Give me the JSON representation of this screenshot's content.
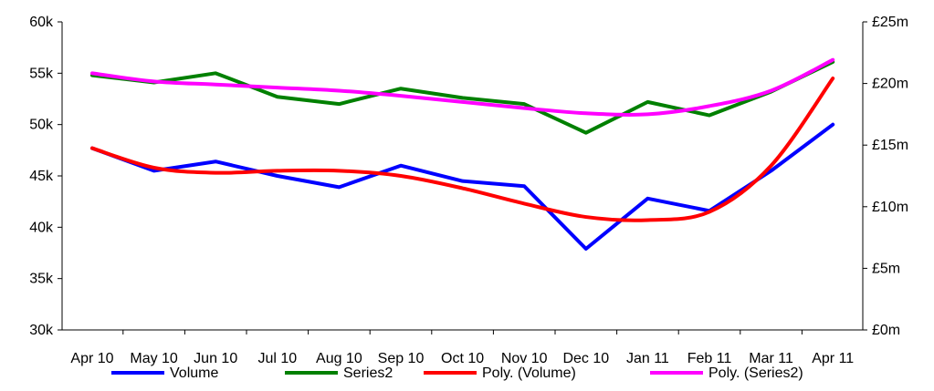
{
  "chart_data": {
    "type": "line",
    "title": "",
    "xlabel": "",
    "ylabel": "",
    "categories": [
      "Apr 10",
      "May 10",
      "Jun 10",
      "Jul 10",
      "Aug 10",
      "Sep 10",
      "Oct 10",
      "Nov 10",
      "Dec 10",
      "Jan 11",
      "Feb 11",
      "Mar 11",
      "Apr 11"
    ],
    "y_left": {
      "range": [
        30000,
        60000
      ],
      "ticks": [
        30000,
        35000,
        40000,
        45000,
        50000,
        55000,
        60000
      ],
      "tick_labels": [
        "30k",
        "35k",
        "40k",
        "45k",
        "50k",
        "55k",
        "60k"
      ]
    },
    "y_right": {
      "range": [
        0,
        25
      ],
      "ticks": [
        0,
        5,
        10,
        15,
        20,
        25
      ],
      "tick_labels": [
        "£0m",
        "£5m",
        "£10m",
        "£15m",
        "£20m",
        "£25m"
      ]
    },
    "grid": false,
    "legend_position": "bottom",
    "series": [
      {
        "name": "Volume",
        "color": "#0000ff",
        "axis": "left",
        "values": [
          47700,
          45500,
          46400,
          45000,
          43900,
          46000,
          44500,
          44000,
          37900,
          42800,
          41600,
          45500,
          50000
        ]
      },
      {
        "name": "Series2",
        "color": "#008000",
        "axis": "left",
        "values": [
          54800,
          54100,
          55000,
          52700,
          52000,
          53500,
          52600,
          52000,
          49200,
          52200,
          50900,
          53200,
          56100
        ]
      },
      {
        "name": "Poly. (Volume)",
        "color": "#ff0000",
        "axis": "left",
        "trendline": true,
        "values": [
          47700,
          45800,
          45300,
          45500,
          45500,
          45000,
          43800,
          42300,
          41000,
          40700,
          41500,
          46000,
          54500
        ]
      },
      {
        "name": "Poly. (Series2)",
        "color": "#ff00ff",
        "axis": "left",
        "trendline": true,
        "values": [
          55000,
          54200,
          53900,
          53600,
          53300,
          52800,
          52200,
          51600,
          51100,
          51000,
          51800,
          53300,
          56300
        ]
      }
    ]
  }
}
